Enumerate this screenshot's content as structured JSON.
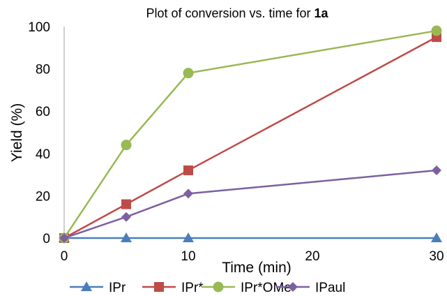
{
  "chart_data": {
    "type": "line",
    "title_prefix": "Plot of conversion vs. time for ",
    "title_bold": "1a",
    "xlabel": "Time (min)",
    "ylabel": "Yield (%)",
    "xlim": [
      0,
      30
    ],
    "ylim": [
      0,
      100
    ],
    "xticks": [
      0,
      10,
      20,
      30
    ],
    "yticks": [
      0,
      20,
      40,
      60,
      80,
      100
    ],
    "grid": false,
    "legend_position": "bottom",
    "series": [
      {
        "name": "IPr",
        "marker": "triangle",
        "color": "#4a7ebb",
        "x": [
          0,
          5,
          10,
          30
        ],
        "y": [
          0,
          0,
          0,
          0
        ]
      },
      {
        "name": "IPr*",
        "marker": "square",
        "color": "#be4b48",
        "x": [
          0,
          5,
          10,
          30
        ],
        "y": [
          0,
          16,
          32,
          95
        ]
      },
      {
        "name": "IPr*OMe",
        "marker": "circle",
        "color": "#98b954",
        "x": [
          0,
          5,
          10,
          30
        ],
        "y": [
          0,
          44,
          78,
          98
        ]
      },
      {
        "name": "IPaul",
        "marker": "diamond",
        "color": "#7d60a0",
        "x": [
          0,
          5,
          10,
          30
        ],
        "y": [
          0,
          10,
          21,
          32
        ]
      }
    ]
  }
}
